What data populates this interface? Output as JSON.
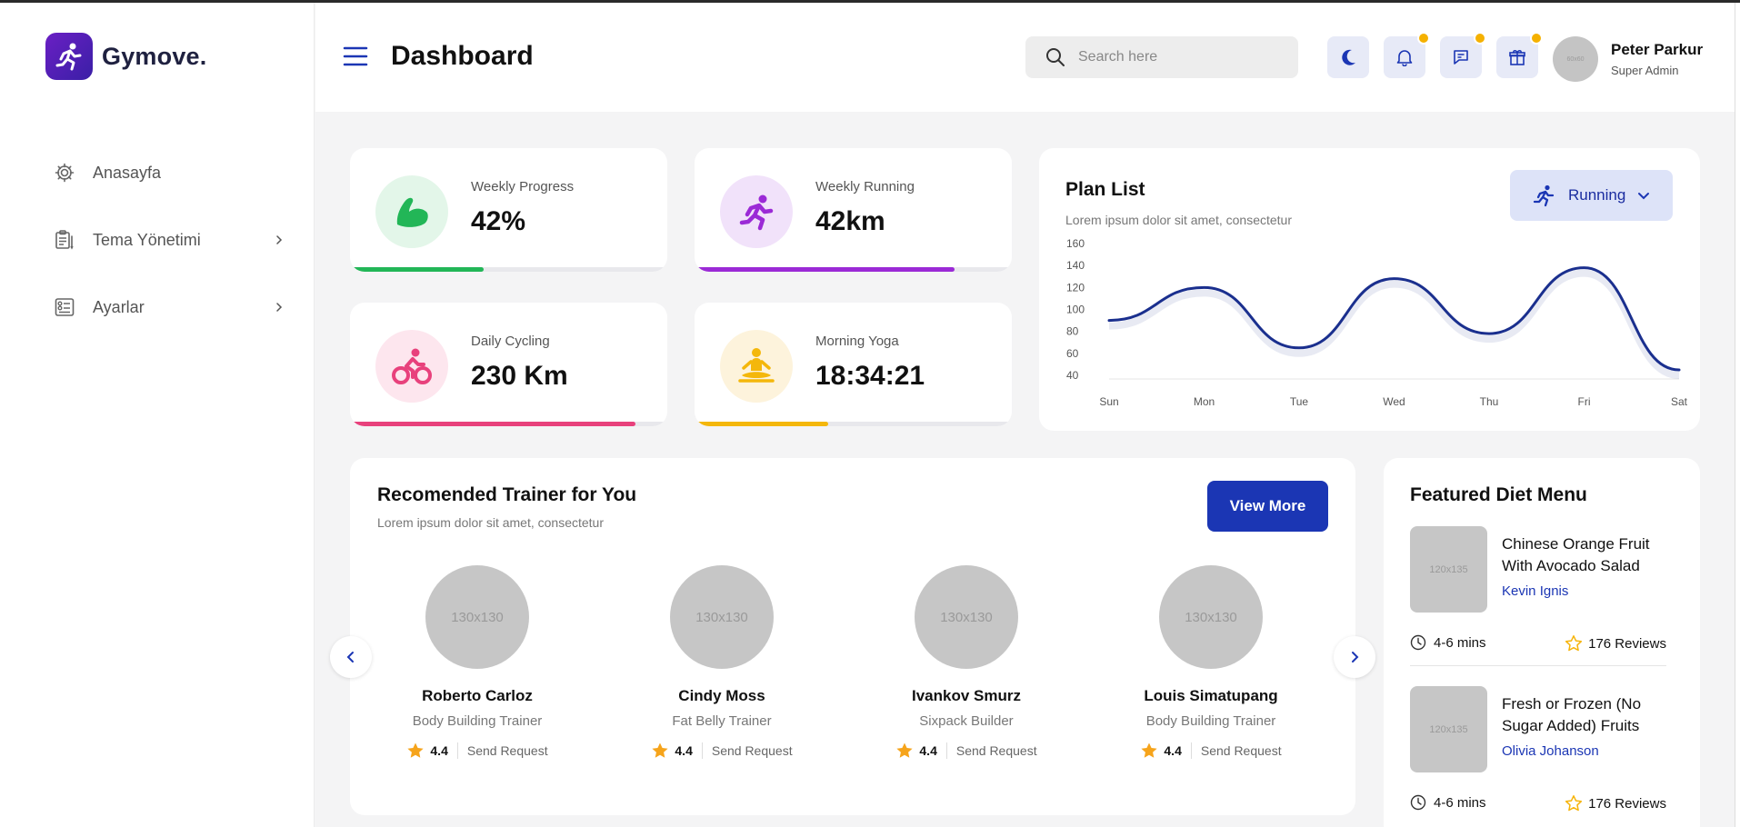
{
  "brand": {
    "name": "Gymove",
    "dot": "."
  },
  "sidebar": {
    "items": [
      {
        "label": "Anasayfa",
        "icon": "gear-icon",
        "has_chevron": false
      },
      {
        "label": "Tema Yönetimi",
        "icon": "clipboard-icon",
        "has_chevron": true
      },
      {
        "label": "Ayarlar",
        "icon": "settings-list-icon",
        "has_chevron": true
      }
    ]
  },
  "header": {
    "title": "Dashboard",
    "search_placeholder": "Search here",
    "user": {
      "name": "Peter Parkur",
      "role": "Super Admin",
      "avatar_text": "60x60"
    }
  },
  "stats": [
    {
      "label": "Weekly Progress",
      "value": "42%",
      "progress": 0.42,
      "color": "#22b657",
      "bg": "#e3f6e9",
      "icon": "flexed-arm-icon"
    },
    {
      "label": "Weekly Running",
      "value": "42km",
      "progress": 0.82,
      "color": "#9b2ad6",
      "bg": "#f1e2fa",
      "icon": "running-icon"
    },
    {
      "label": "Daily Cycling",
      "value": "230 Km",
      "progress": 0.9,
      "color": "#e8417c",
      "bg": "#fde6ee",
      "icon": "cycling-icon"
    },
    {
      "label": "Morning Yoga",
      "value": "18:34:21",
      "progress": 0.42,
      "color": "#f4b70b",
      "bg": "#fdf3dc",
      "icon": "yoga-icon"
    }
  ],
  "plan": {
    "title": "Plan List",
    "subtitle": "Lorem ipsum dolor sit amet, consectetur",
    "dropdown_label": "Running"
  },
  "chart_data": {
    "type": "line",
    "title": "",
    "categories": [
      "Sun",
      "Mon",
      "Tue",
      "Wed",
      "Thu",
      "Fri",
      "Sat"
    ],
    "x": [
      "Sun",
      "Mon",
      "Tue",
      "Wed",
      "Thu",
      "Fri",
      "Sat"
    ],
    "series": [
      {
        "values": [
          90,
          120,
          65,
          128,
          78,
          138,
          45
        ]
      }
    ],
    "yticks": [
      160,
      140,
      120,
      100,
      80,
      60,
      40
    ],
    "ylim": [
      40,
      160
    ],
    "grid": false,
    "color": "#1a2f8e"
  },
  "trainers": {
    "title": "Recomended Trainer for You",
    "subtitle": "Lorem ipsum dolor sit amet, consectetur",
    "view_more": "View More",
    "request_label": "Send Request",
    "items": [
      {
        "name": "Roberto Carloz",
        "role": "Body Building Trainer",
        "rating": "4.4",
        "photo": "130x130"
      },
      {
        "name": "Cindy Moss",
        "role": "Fat Belly Trainer",
        "rating": "4.4",
        "photo": "130x130"
      },
      {
        "name": "Ivankov Smurz",
        "role": "Sixpack Builder",
        "rating": "4.4",
        "photo": "130x130"
      },
      {
        "name": "Louis Simatupang",
        "role": "Body Building Trainer",
        "rating": "4.4",
        "photo": "130x130"
      }
    ]
  },
  "diet": {
    "title": "Featured Diet Menu",
    "items": [
      {
        "name": "Chinese Orange Fruit With Avocado Salad",
        "author": "Kevin Ignis",
        "time": "4-6 mins",
        "reviews": "176 Reviews",
        "photo": "120x135"
      },
      {
        "name": "Fresh or Frozen (No Sugar Added) Fruits",
        "author": "Olivia Johanson",
        "time": "4-6 mins",
        "reviews": "176 Reviews",
        "photo": "120x135"
      }
    ]
  }
}
